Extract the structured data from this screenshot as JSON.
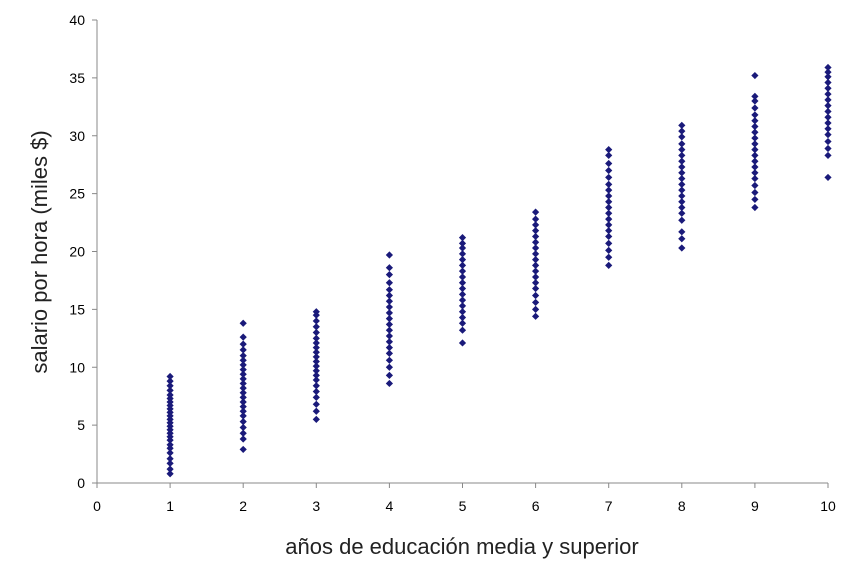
{
  "chart_data": {
    "type": "scatter",
    "title": "",
    "xlabel": "años de educación media y superior",
    "ylabel": "salario por hora (miles $)",
    "xlim": [
      0,
      10
    ],
    "ylim": [
      0,
      40
    ],
    "xticks": [
      0,
      1,
      2,
      3,
      4,
      5,
      6,
      7,
      8,
      9,
      10
    ],
    "yticks": [
      0,
      5,
      10,
      15,
      20,
      25,
      30,
      35,
      40
    ],
    "grid": false,
    "legend": "none",
    "marker": "diamond",
    "color": "#1a1a7a",
    "series": [
      {
        "points": [
          [
            1,
            0.8
          ],
          [
            1,
            1.2
          ],
          [
            1,
            1.7
          ],
          [
            1,
            2.1
          ],
          [
            1,
            2.6
          ],
          [
            1,
            3.0
          ],
          [
            1,
            3.3
          ],
          [
            1,
            3.7
          ],
          [
            1,
            4.0
          ],
          [
            1,
            4.3
          ],
          [
            1,
            4.6
          ],
          [
            1,
            4.9
          ],
          [
            1,
            5.2
          ],
          [
            1,
            5.5
          ],
          [
            1,
            5.8
          ],
          [
            1,
            6.1
          ],
          [
            1,
            6.4
          ],
          [
            1,
            6.7
          ],
          [
            1,
            7.0
          ],
          [
            1,
            7.3
          ],
          [
            1,
            7.6
          ],
          [
            1,
            8.0
          ],
          [
            1,
            8.4
          ],
          [
            1,
            8.8
          ],
          [
            1,
            9.2
          ],
          [
            2,
            2.9
          ],
          [
            2,
            3.8
          ],
          [
            2,
            4.3
          ],
          [
            2,
            4.8
          ],
          [
            2,
            5.3
          ],
          [
            2,
            5.8
          ],
          [
            2,
            6.2
          ],
          [
            2,
            6.6
          ],
          [
            2,
            7.0
          ],
          [
            2,
            7.4
          ],
          [
            2,
            7.8
          ],
          [
            2,
            8.2
          ],
          [
            2,
            8.6
          ],
          [
            2,
            9.0
          ],
          [
            2,
            9.4
          ],
          [
            2,
            9.8
          ],
          [
            2,
            10.2
          ],
          [
            2,
            10.6
          ],
          [
            2,
            11.0
          ],
          [
            2,
            11.5
          ],
          [
            2,
            12.0
          ],
          [
            2,
            12.6
          ],
          [
            2,
            13.8
          ],
          [
            3,
            5.5
          ],
          [
            3,
            6.2
          ],
          [
            3,
            6.8
          ],
          [
            3,
            7.4
          ],
          [
            3,
            7.9
          ],
          [
            3,
            8.4
          ],
          [
            3,
            8.9
          ],
          [
            3,
            9.3
          ],
          [
            3,
            9.7
          ],
          [
            3,
            10.1
          ],
          [
            3,
            10.5
          ],
          [
            3,
            10.9
          ],
          [
            3,
            11.3
          ],
          [
            3,
            11.7
          ],
          [
            3,
            12.1
          ],
          [
            3,
            12.5
          ],
          [
            3,
            13.0
          ],
          [
            3,
            13.5
          ],
          [
            3,
            14.0
          ],
          [
            3,
            14.5
          ],
          [
            3,
            14.8
          ],
          [
            4,
            8.6
          ],
          [
            4,
            9.3
          ],
          [
            4,
            10.0
          ],
          [
            4,
            10.6
          ],
          [
            4,
            11.2
          ],
          [
            4,
            11.7
          ],
          [
            4,
            12.2
          ],
          [
            4,
            12.7
          ],
          [
            4,
            13.2
          ],
          [
            4,
            13.7
          ],
          [
            4,
            14.2
          ],
          [
            4,
            14.7
          ],
          [
            4,
            15.2
          ],
          [
            4,
            15.7
          ],
          [
            4,
            16.2
          ],
          [
            4,
            16.7
          ],
          [
            4,
            17.3
          ],
          [
            4,
            18.0
          ],
          [
            4,
            18.6
          ],
          [
            4,
            19.7
          ],
          [
            5,
            12.1
          ],
          [
            5,
            13.2
          ],
          [
            5,
            13.8
          ],
          [
            5,
            14.3
          ],
          [
            5,
            14.8
          ],
          [
            5,
            15.3
          ],
          [
            5,
            15.8
          ],
          [
            5,
            16.3
          ],
          [
            5,
            16.8
          ],
          [
            5,
            17.3
          ],
          [
            5,
            17.8
          ],
          [
            5,
            18.3
          ],
          [
            5,
            18.8
          ],
          [
            5,
            19.3
          ],
          [
            5,
            19.8
          ],
          [
            5,
            20.3
          ],
          [
            5,
            20.7
          ],
          [
            5,
            21.2
          ],
          [
            6,
            14.4
          ],
          [
            6,
            15.0
          ],
          [
            6,
            15.6
          ],
          [
            6,
            16.2
          ],
          [
            6,
            16.8
          ],
          [
            6,
            17.3
          ],
          [
            6,
            17.8
          ],
          [
            6,
            18.3
          ],
          [
            6,
            18.8
          ],
          [
            6,
            19.3
          ],
          [
            6,
            19.8
          ],
          [
            6,
            20.3
          ],
          [
            6,
            20.8
          ],
          [
            6,
            21.3
          ],
          [
            6,
            21.8
          ],
          [
            6,
            22.3
          ],
          [
            6,
            22.8
          ],
          [
            6,
            23.4
          ],
          [
            7,
            18.8
          ],
          [
            7,
            19.5
          ],
          [
            7,
            20.1
          ],
          [
            7,
            20.7
          ],
          [
            7,
            21.3
          ],
          [
            7,
            21.8
          ],
          [
            7,
            22.3
          ],
          [
            7,
            22.8
          ],
          [
            7,
            23.3
          ],
          [
            7,
            23.8
          ],
          [
            7,
            24.3
          ],
          [
            7,
            24.8
          ],
          [
            7,
            25.3
          ],
          [
            7,
            25.8
          ],
          [
            7,
            26.4
          ],
          [
            7,
            27.0
          ],
          [
            7,
            27.6
          ],
          [
            7,
            28.3
          ],
          [
            7,
            28.8
          ],
          [
            8,
            20.3
          ],
          [
            8,
            21.1
          ],
          [
            8,
            21.7
          ],
          [
            8,
            22.7
          ],
          [
            8,
            23.3
          ],
          [
            8,
            23.8
          ],
          [
            8,
            24.3
          ],
          [
            8,
            24.8
          ],
          [
            8,
            25.3
          ],
          [
            8,
            25.8
          ],
          [
            8,
            26.3
          ],
          [
            8,
            26.8
          ],
          [
            8,
            27.3
          ],
          [
            8,
            27.8
          ],
          [
            8,
            28.3
          ],
          [
            8,
            28.8
          ],
          [
            8,
            29.3
          ],
          [
            8,
            29.9
          ],
          [
            8,
            30.4
          ],
          [
            8,
            30.9
          ],
          [
            9,
            23.8
          ],
          [
            9,
            24.5
          ],
          [
            9,
            25.1
          ],
          [
            9,
            25.7
          ],
          [
            9,
            26.3
          ],
          [
            9,
            26.8
          ],
          [
            9,
            27.3
          ],
          [
            9,
            27.8
          ],
          [
            9,
            28.3
          ],
          [
            9,
            28.8
          ],
          [
            9,
            29.3
          ],
          [
            9,
            29.8
          ],
          [
            9,
            30.3
          ],
          [
            9,
            30.8
          ],
          [
            9,
            31.3
          ],
          [
            9,
            31.8
          ],
          [
            9,
            32.4
          ],
          [
            9,
            33.0
          ],
          [
            9,
            33.4
          ],
          [
            9,
            35.2
          ],
          [
            10,
            26.4
          ],
          [
            10,
            28.3
          ],
          [
            10,
            28.9
          ],
          [
            10,
            29.5
          ],
          [
            10,
            30.1
          ],
          [
            10,
            30.6
          ],
          [
            10,
            31.1
          ],
          [
            10,
            31.6
          ],
          [
            10,
            32.1
          ],
          [
            10,
            32.6
          ],
          [
            10,
            33.1
          ],
          [
            10,
            33.6
          ],
          [
            10,
            34.1
          ],
          [
            10,
            34.6
          ],
          [
            10,
            35.1
          ],
          [
            10,
            35.5
          ],
          [
            10,
            35.9
          ]
        ]
      }
    ]
  }
}
